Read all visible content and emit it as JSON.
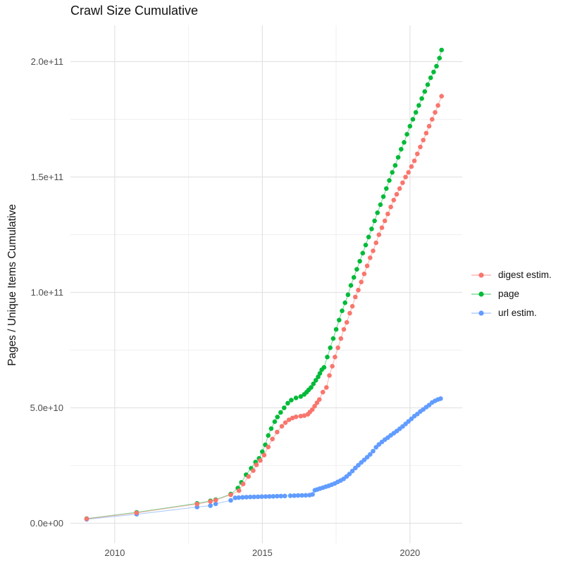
{
  "title": "Crawl Size Cumulative",
  "y_axis_label": "Pages / Unique Items Cumulative",
  "legend": {
    "entries": [
      {
        "label": "digest estim.",
        "color": "#F8766D"
      },
      {
        "label": "page",
        "color": "#00BA38"
      },
      {
        "label": "url estim.",
        "color": "#619CFF"
      }
    ]
  },
  "axes": {
    "x": {
      "lim": [
        2008.5,
        2021.77
      ],
      "major_ticks": [
        {
          "label": "2010",
          "value": 2010
        },
        {
          "label": "2015",
          "value": 2015
        },
        {
          "label": "2020",
          "value": 2020
        }
      ],
      "minor_ticks": [
        2012.5,
        2017.5
      ]
    },
    "y": {
      "unit_multiplier": 1000000000.0,
      "lim": [
        -8.7,
        215.7
      ],
      "major_ticks": [
        {
          "label": "0.0e+00",
          "value": 0
        },
        {
          "label": "5.0e+10",
          "value": 50
        },
        {
          "label": "1.0e+11",
          "value": 100
        },
        {
          "label": "1.5e+11",
          "value": 150
        },
        {
          "label": "2.0e+11",
          "value": 200
        }
      ],
      "minor_ticks": [
        25,
        75,
        125,
        175
      ]
    }
  },
  "chart_data": {
    "type": "scatter",
    "title": "Crawl Size Cumulative",
    "xlabel": "",
    "ylabel": "Pages / Unique Items Cumulative",
    "x_unit": "year",
    "y_unit": "count (values in units of 1e9)",
    "xlim": [
      2008.5,
      2021.77
    ],
    "ylim_1e9": [
      -8.7,
      215.7
    ],
    "grid": "on",
    "legend_position": "right",
    "marker_radius_px": 3.3,
    "line_opacity": 0.55,
    "series": [
      {
        "name": "digest estim.",
        "color": "#F8766D",
        "points": [
          [
            2009.05,
            1.9
          ],
          [
            2010.74,
            4.5
          ],
          [
            2012.79,
            8.3
          ],
          [
            2013.24,
            9.4
          ],
          [
            2013.42,
            10.0
          ],
          [
            2013.93,
            12.3
          ],
          [
            2014.21,
            14.1
          ],
          [
            2014.35,
            17.0
          ],
          [
            2014.53,
            20.2
          ],
          [
            2014.69,
            22.8
          ],
          [
            2014.8,
            25.3
          ],
          [
            2014.93,
            27.2
          ],
          [
            2015.06,
            29.5
          ],
          [
            2015.2,
            33.0
          ],
          [
            2015.34,
            36.5
          ],
          [
            2015.5,
            39.5
          ],
          [
            2015.66,
            42.0
          ],
          [
            2015.78,
            43.6
          ],
          [
            2015.9,
            44.8
          ],
          [
            2016.02,
            45.6
          ],
          [
            2016.14,
            46.1
          ],
          [
            2016.3,
            46.4
          ],
          [
            2016.42,
            46.6
          ],
          [
            2016.54,
            47.2
          ],
          [
            2016.61,
            48.2
          ],
          [
            2016.69,
            49.2
          ],
          [
            2016.77,
            50.7
          ],
          [
            2016.85,
            52.2
          ],
          [
            2016.93,
            53.6
          ],
          [
            2017.05,
            56.8
          ],
          [
            2017.17,
            58.8
          ],
          [
            2017.27,
            64.0
          ],
          [
            2017.37,
            68.0
          ],
          [
            2017.46,
            72.0
          ],
          [
            2017.56,
            76.0
          ],
          [
            2017.66,
            80.0
          ],
          [
            2017.76,
            84.0
          ],
          [
            2017.86,
            87.0
          ],
          [
            2017.96,
            91.0
          ],
          [
            2018.05,
            94.0
          ],
          [
            2018.15,
            98.0
          ],
          [
            2018.25,
            101.0
          ],
          [
            2018.35,
            104.5
          ],
          [
            2018.45,
            108.0
          ],
          [
            2018.55,
            111.5
          ],
          [
            2018.65,
            115.0
          ],
          [
            2018.75,
            118.0
          ],
          [
            2018.85,
            121.5
          ],
          [
            2018.95,
            125.0
          ],
          [
            2019.05,
            128.0
          ],
          [
            2019.15,
            131.0
          ],
          [
            2019.25,
            134.0
          ],
          [
            2019.35,
            137.0
          ],
          [
            2019.45,
            140.0
          ],
          [
            2019.55,
            142.5
          ],
          [
            2019.65,
            145.0
          ],
          [
            2019.75,
            147.5
          ],
          [
            2019.85,
            150.0
          ],
          [
            2019.95,
            152.0
          ],
          [
            2020.05,
            154.5
          ],
          [
            2020.15,
            157.0
          ],
          [
            2020.25,
            160.0
          ],
          [
            2020.35,
            163.0
          ],
          [
            2020.45,
            166.0
          ],
          [
            2020.55,
            169.0
          ],
          [
            2020.65,
            172.0
          ],
          [
            2020.75,
            175.0
          ],
          [
            2020.85,
            178.0
          ],
          [
            2020.95,
            181.0
          ],
          [
            2021.07,
            185.0
          ]
        ]
      },
      {
        "name": "page",
        "color": "#00BA38",
        "points": [
          [
            2009.05,
            2.0
          ],
          [
            2010.74,
            4.7
          ],
          [
            2012.79,
            8.6
          ],
          [
            2013.24,
            9.7
          ],
          [
            2013.42,
            10.2
          ],
          [
            2013.93,
            12.6
          ],
          [
            2014.17,
            15.2
          ],
          [
            2014.29,
            17.7
          ],
          [
            2014.45,
            21.0
          ],
          [
            2014.62,
            23.8
          ],
          [
            2014.77,
            26.5
          ],
          [
            2014.89,
            28.1
          ],
          [
            2015.0,
            31.0
          ],
          [
            2015.1,
            34.0
          ],
          [
            2015.2,
            38.0
          ],
          [
            2015.3,
            41.0
          ],
          [
            2015.42,
            44.0
          ],
          [
            2015.51,
            46.0
          ],
          [
            2015.62,
            48.0
          ],
          [
            2015.74,
            50.0
          ],
          [
            2015.86,
            52.0
          ],
          [
            2015.98,
            53.3
          ],
          [
            2016.14,
            54.3
          ],
          [
            2016.3,
            54.9
          ],
          [
            2016.42,
            55.8
          ],
          [
            2016.5,
            56.8
          ],
          [
            2016.57,
            57.8
          ],
          [
            2016.65,
            58.8
          ],
          [
            2016.73,
            60.4
          ],
          [
            2016.81,
            61.9
          ],
          [
            2016.89,
            63.4
          ],
          [
            2016.95,
            64.9
          ],
          [
            2017.01,
            66.5
          ],
          [
            2017.09,
            67.5
          ],
          [
            2017.2,
            72.0
          ],
          [
            2017.3,
            76.0
          ],
          [
            2017.4,
            80.0
          ],
          [
            2017.5,
            84.0
          ],
          [
            2017.6,
            88.0
          ],
          [
            2017.7,
            92.0
          ],
          [
            2017.8,
            95.5
          ],
          [
            2017.9,
            99.0
          ],
          [
            2018.0,
            103.0
          ],
          [
            2018.1,
            106.5
          ],
          [
            2018.2,
            110.0
          ],
          [
            2018.3,
            113.5
          ],
          [
            2018.4,
            117.0
          ],
          [
            2018.5,
            120.5
          ],
          [
            2018.6,
            124.0
          ],
          [
            2018.7,
            127.5
          ],
          [
            2018.8,
            131.0
          ],
          [
            2018.9,
            134.5
          ],
          [
            2019.0,
            138.0
          ],
          [
            2019.1,
            141.5
          ],
          [
            2019.2,
            145.0
          ],
          [
            2019.3,
            148.5
          ],
          [
            2019.4,
            152.0
          ],
          [
            2019.5,
            155.0
          ],
          [
            2019.6,
            158.5
          ],
          [
            2019.7,
            162.0
          ],
          [
            2019.8,
            165.0
          ],
          [
            2019.9,
            168.5
          ],
          [
            2020.0,
            172.0
          ],
          [
            2020.1,
            175.0
          ],
          [
            2020.2,
            178.0
          ],
          [
            2020.3,
            181.0
          ],
          [
            2020.4,
            184.0
          ],
          [
            2020.5,
            187.0
          ],
          [
            2020.6,
            190.0
          ],
          [
            2020.7,
            193.0
          ],
          [
            2020.8,
            195.5
          ],
          [
            2020.9,
            198.0
          ],
          [
            2021.0,
            201.5
          ],
          [
            2021.07,
            205.0
          ]
        ]
      },
      {
        "name": "url estim.",
        "color": "#619CFF",
        "points": [
          [
            2009.05,
            1.7
          ],
          [
            2010.74,
            3.9
          ],
          [
            2012.79,
            7.0
          ],
          [
            2013.24,
            7.6
          ],
          [
            2013.42,
            8.4
          ],
          [
            2013.93,
            9.9
          ],
          [
            2014.08,
            11.0
          ],
          [
            2014.2,
            11.1
          ],
          [
            2014.33,
            11.2
          ],
          [
            2014.46,
            11.3
          ],
          [
            2014.59,
            11.35
          ],
          [
            2014.72,
            11.4
          ],
          [
            2014.85,
            11.45
          ],
          [
            2014.98,
            11.5
          ],
          [
            2015.11,
            11.55
          ],
          [
            2015.24,
            11.6
          ],
          [
            2015.37,
            11.65
          ],
          [
            2015.5,
            11.7
          ],
          [
            2015.63,
            11.75
          ],
          [
            2015.76,
            11.8
          ],
          [
            2015.95,
            11.9
          ],
          [
            2016.08,
            11.95
          ],
          [
            2016.21,
            12.0
          ],
          [
            2016.34,
            12.05
          ],
          [
            2016.47,
            12.1
          ],
          [
            2016.6,
            12.2
          ],
          [
            2016.7,
            12.5
          ],
          [
            2016.78,
            14.3
          ],
          [
            2016.86,
            14.6
          ],
          [
            2016.95,
            15.0
          ],
          [
            2017.05,
            15.4
          ],
          [
            2017.15,
            15.8
          ],
          [
            2017.25,
            16.2
          ],
          [
            2017.35,
            16.7
          ],
          [
            2017.45,
            17.2
          ],
          [
            2017.55,
            17.9
          ],
          [
            2017.65,
            18.5
          ],
          [
            2017.75,
            19.2
          ],
          [
            2017.85,
            20.2
          ],
          [
            2017.95,
            21.3
          ],
          [
            2018.05,
            22.6
          ],
          [
            2018.15,
            23.9
          ],
          [
            2018.25,
            25.1
          ],
          [
            2018.35,
            26.3
          ],
          [
            2018.45,
            27.4
          ],
          [
            2018.55,
            28.6
          ],
          [
            2018.65,
            29.8
          ],
          [
            2018.75,
            31.2
          ],
          [
            2018.85,
            32.9
          ],
          [
            2018.95,
            34.1
          ],
          [
            2019.05,
            35.2
          ],
          [
            2019.15,
            36.2
          ],
          [
            2019.25,
            37.1
          ],
          [
            2019.35,
            38.1
          ],
          [
            2019.45,
            39.0
          ],
          [
            2019.55,
            39.9
          ],
          [
            2019.65,
            40.9
          ],
          [
            2019.75,
            41.9
          ],
          [
            2019.85,
            43.0
          ],
          [
            2019.95,
            44.1
          ],
          [
            2020.05,
            45.2
          ],
          [
            2020.15,
            46.4
          ],
          [
            2020.25,
            47.3
          ],
          [
            2020.35,
            48.4
          ],
          [
            2020.45,
            49.3
          ],
          [
            2020.55,
            50.3
          ],
          [
            2020.65,
            51.2
          ],
          [
            2020.75,
            52.3
          ],
          [
            2020.85,
            53.0
          ],
          [
            2020.95,
            53.6
          ],
          [
            2021.04,
            54.0
          ]
        ]
      }
    ]
  }
}
